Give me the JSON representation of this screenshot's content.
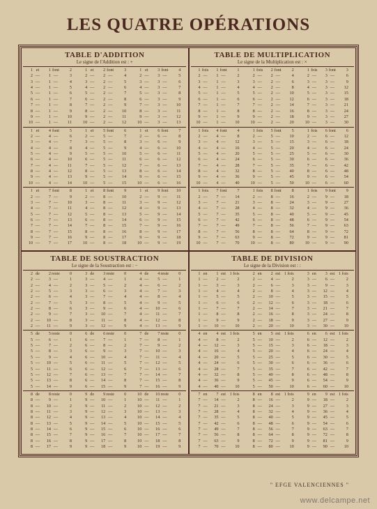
{
  "title": "LES QUATRE OPÉRATIONS",
  "footer": "\" EFGE VALENCIENNES \"",
  "watermark": "www.delcampe.net",
  "quadrants": {
    "addition": {
      "title": "TABLE D'ADDITION",
      "sub": "Le signe de l'Addition est : +",
      "conj": "et",
      "res": "font",
      "head_a": "et",
      "head_res": "font",
      "groups": [
        1,
        2,
        3,
        4,
        5,
        6,
        7,
        8,
        9
      ],
      "range": [
        1,
        10
      ],
      "op": "add"
    },
    "multiplication": {
      "title": "TABLE DE MULTIPLICATION",
      "sub": "Le signe de la Multiplication est : ×",
      "conj": "fois",
      "res": "font",
      "head_a": "fois",
      "head_res": "font",
      "groups": [
        1,
        2,
        3,
        4,
        5,
        6,
        7,
        8,
        9
      ],
      "range": [
        1,
        10
      ],
      "op": "mul"
    },
    "subtraction": {
      "title": "TABLE DE SOUSTRACTION",
      "sub": "Le signe de la Soustraction est : −",
      "conj": "de",
      "res": "reste",
      "head_a": "de",
      "head_res": "reste",
      "groups": [
        2,
        3,
        4,
        5,
        6,
        7,
        8,
        9,
        10
      ],
      "range": [
        1,
        10
      ],
      "op": "sub"
    },
    "division": {
      "title": "TABLE DE DIVISION",
      "sub": "Le signe de la Division est : :",
      "conj": "en",
      "res": "est",
      "tail": "fois",
      "head_a": "en",
      "head_res": "est",
      "head_tail": "fois",
      "groups": [
        1,
        2,
        3,
        4,
        5,
        6,
        7,
        8,
        9
      ],
      "range": [
        1,
        10
      ],
      "op": "div"
    }
  }
}
